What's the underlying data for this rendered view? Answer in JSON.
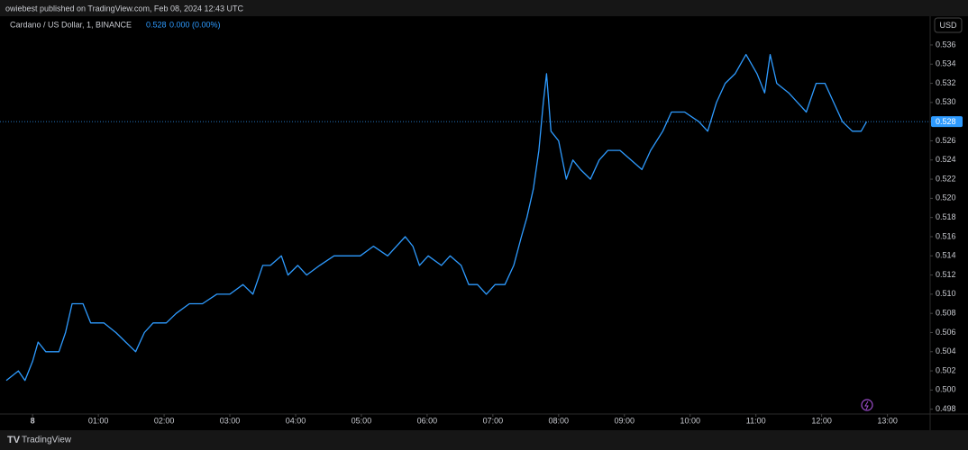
{
  "header": {
    "published": "owiebest published on TradingView.com, Feb 08, 2024 12:43 UTC"
  },
  "currency": "USD",
  "footer": {
    "brand": "TradingView"
  },
  "chart_data": {
    "type": "line",
    "last_price": 0.528,
    "change_label": "0.000 (0.00%)",
    "x": [
      -24,
      -13,
      -7,
      0,
      5,
      12,
      24,
      30,
      36,
      46,
      53,
      65,
      76,
      85,
      94,
      102,
      110,
      122,
      131,
      143,
      155,
      168,
      180,
      192,
      201,
      210,
      217,
      227,
      233,
      242,
      250,
      262,
      275,
      287,
      299,
      311,
      324,
      332,
      340,
      347,
      353,
      361,
      373,
      381,
      391,
      398,
      406,
      414,
      422,
      431,
      439,
      446,
      451,
      457,
      462,
      466,
      469,
      473,
      480,
      487,
      493,
      500,
      509,
      517,
      525,
      536,
      546,
      556,
      564,
      575,
      583,
      595,
      608,
      616,
      624,
      632,
      641,
      651,
      661,
      668,
      673,
      679,
      690,
      698,
      706,
      715,
      723,
      731,
      739,
      748,
      756,
      761
    ],
    "series": [
      {
        "name": "Cardano / US Dollar, 1, BINANCE",
        "color": "#2e9bff",
        "values": [
          0.501,
          0.502,
          0.501,
          0.503,
          0.505,
          0.504,
          0.504,
          0.506,
          0.509,
          0.509,
          0.507,
          0.507,
          0.506,
          0.505,
          0.504,
          0.506,
          0.507,
          0.507,
          0.508,
          0.509,
          0.509,
          0.51,
          0.51,
          0.511,
          0.51,
          0.513,
          0.513,
          0.514,
          0.512,
          0.513,
          0.512,
          0.513,
          0.514,
          0.514,
          0.514,
          0.515,
          0.514,
          0.515,
          0.516,
          0.515,
          0.513,
          0.514,
          0.513,
          0.514,
          0.513,
          0.511,
          0.511,
          0.51,
          0.511,
          0.511,
          0.513,
          0.516,
          0.518,
          0.521,
          0.525,
          0.53,
          0.533,
          0.527,
          0.526,
          0.522,
          0.524,
          0.523,
          0.522,
          0.524,
          0.525,
          0.525,
          0.524,
          0.523,
          0.525,
          0.527,
          0.529,
          0.529,
          0.528,
          0.527,
          0.53,
          0.532,
          0.533,
          0.535,
          0.533,
          0.531,
          0.535,
          0.532,
          0.531,
          0.53,
          0.529,
          0.532,
          0.532,
          0.53,
          0.528,
          0.527,
          0.527,
          0.528
        ]
      }
    ],
    "xlim": [
      -24,
      819
    ],
    "xticks": [
      {
        "value": 0,
        "label": "8"
      },
      {
        "value": 60,
        "label": "01:00"
      },
      {
        "value": 120,
        "label": "02:00"
      },
      {
        "value": 180,
        "label": "03:00"
      },
      {
        "value": 240,
        "label": "04:00"
      },
      {
        "value": 300,
        "label": "05:00"
      },
      {
        "value": 360,
        "label": "06:00"
      },
      {
        "value": 420,
        "label": "07:00"
      },
      {
        "value": 480,
        "label": "08:00"
      },
      {
        "value": 540,
        "label": "09:00"
      },
      {
        "value": 600,
        "label": "10:00"
      },
      {
        "value": 660,
        "label": "11:00"
      },
      {
        "value": 720,
        "label": "12:00"
      },
      {
        "value": 780,
        "label": "13:00"
      }
    ],
    "ylim": [
      0.4975,
      0.539
    ],
    "yticks": [
      0.498,
      {
        "value": 0.5,
        "label": "0.500"
      },
      0.502,
      0.504,
      0.506,
      0.508,
      {
        "value": 0.51,
        "label": "0.510"
      },
      0.512,
      0.514,
      0.516,
      0.518,
      {
        "value": 0.52,
        "label": "0.520"
      },
      0.522,
      0.524,
      0.526,
      0.528,
      {
        "value": 0.53,
        "label": "0.530"
      },
      0.532,
      0.534,
      0.536
    ],
    "grid": false
  }
}
